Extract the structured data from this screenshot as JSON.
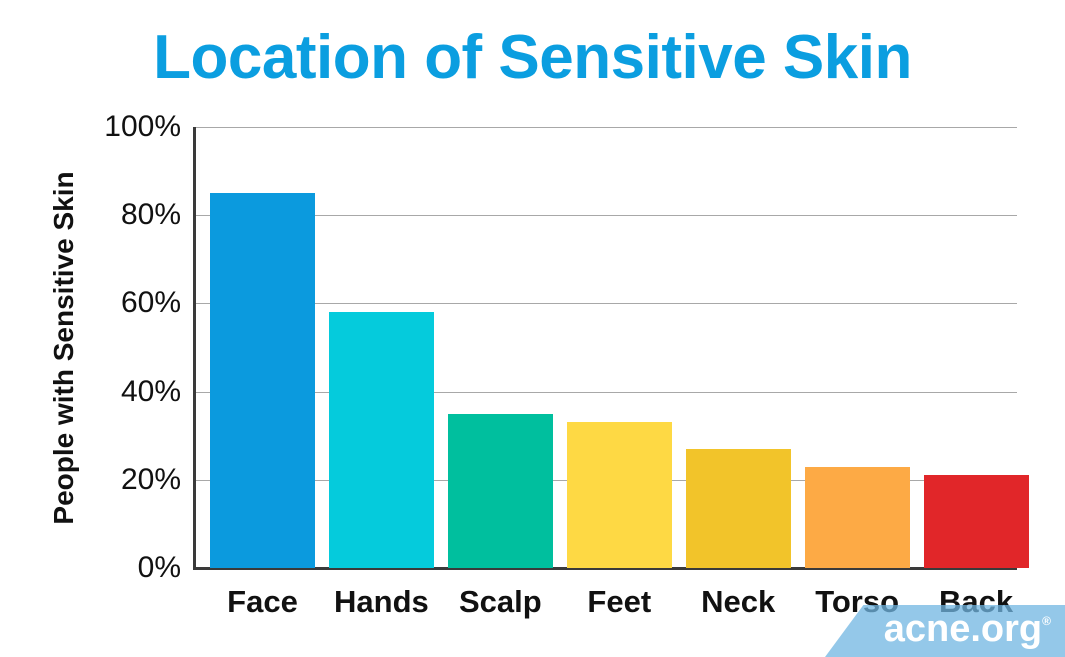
{
  "chart_data": {
    "type": "bar",
    "title": "Location of Sensitive Skin",
    "xlabel": "",
    "ylabel": "People with Sensitive Skin",
    "categories": [
      "Face",
      "Hands",
      "Scalp",
      "Feet",
      "Neck",
      "Torso",
      "Back"
    ],
    "values": [
      85,
      58,
      35,
      33,
      27,
      23,
      21
    ],
    "unit": "%",
    "colors": [
      "#0b9ade",
      "#05cbdc",
      "#00bf9e",
      "#fed944",
      "#f2c42a",
      "#fdaa45",
      "#e12629"
    ],
    "ylim": [
      0,
      100
    ],
    "yticks": [
      0,
      20,
      40,
      60,
      80,
      100
    ],
    "ytick_labels": [
      "0%",
      "20%",
      "40%",
      "60%",
      "80%",
      "100%"
    ],
    "grid": true,
    "legend": null
  },
  "brand": {
    "text": "acne.org",
    "mark": "®"
  }
}
